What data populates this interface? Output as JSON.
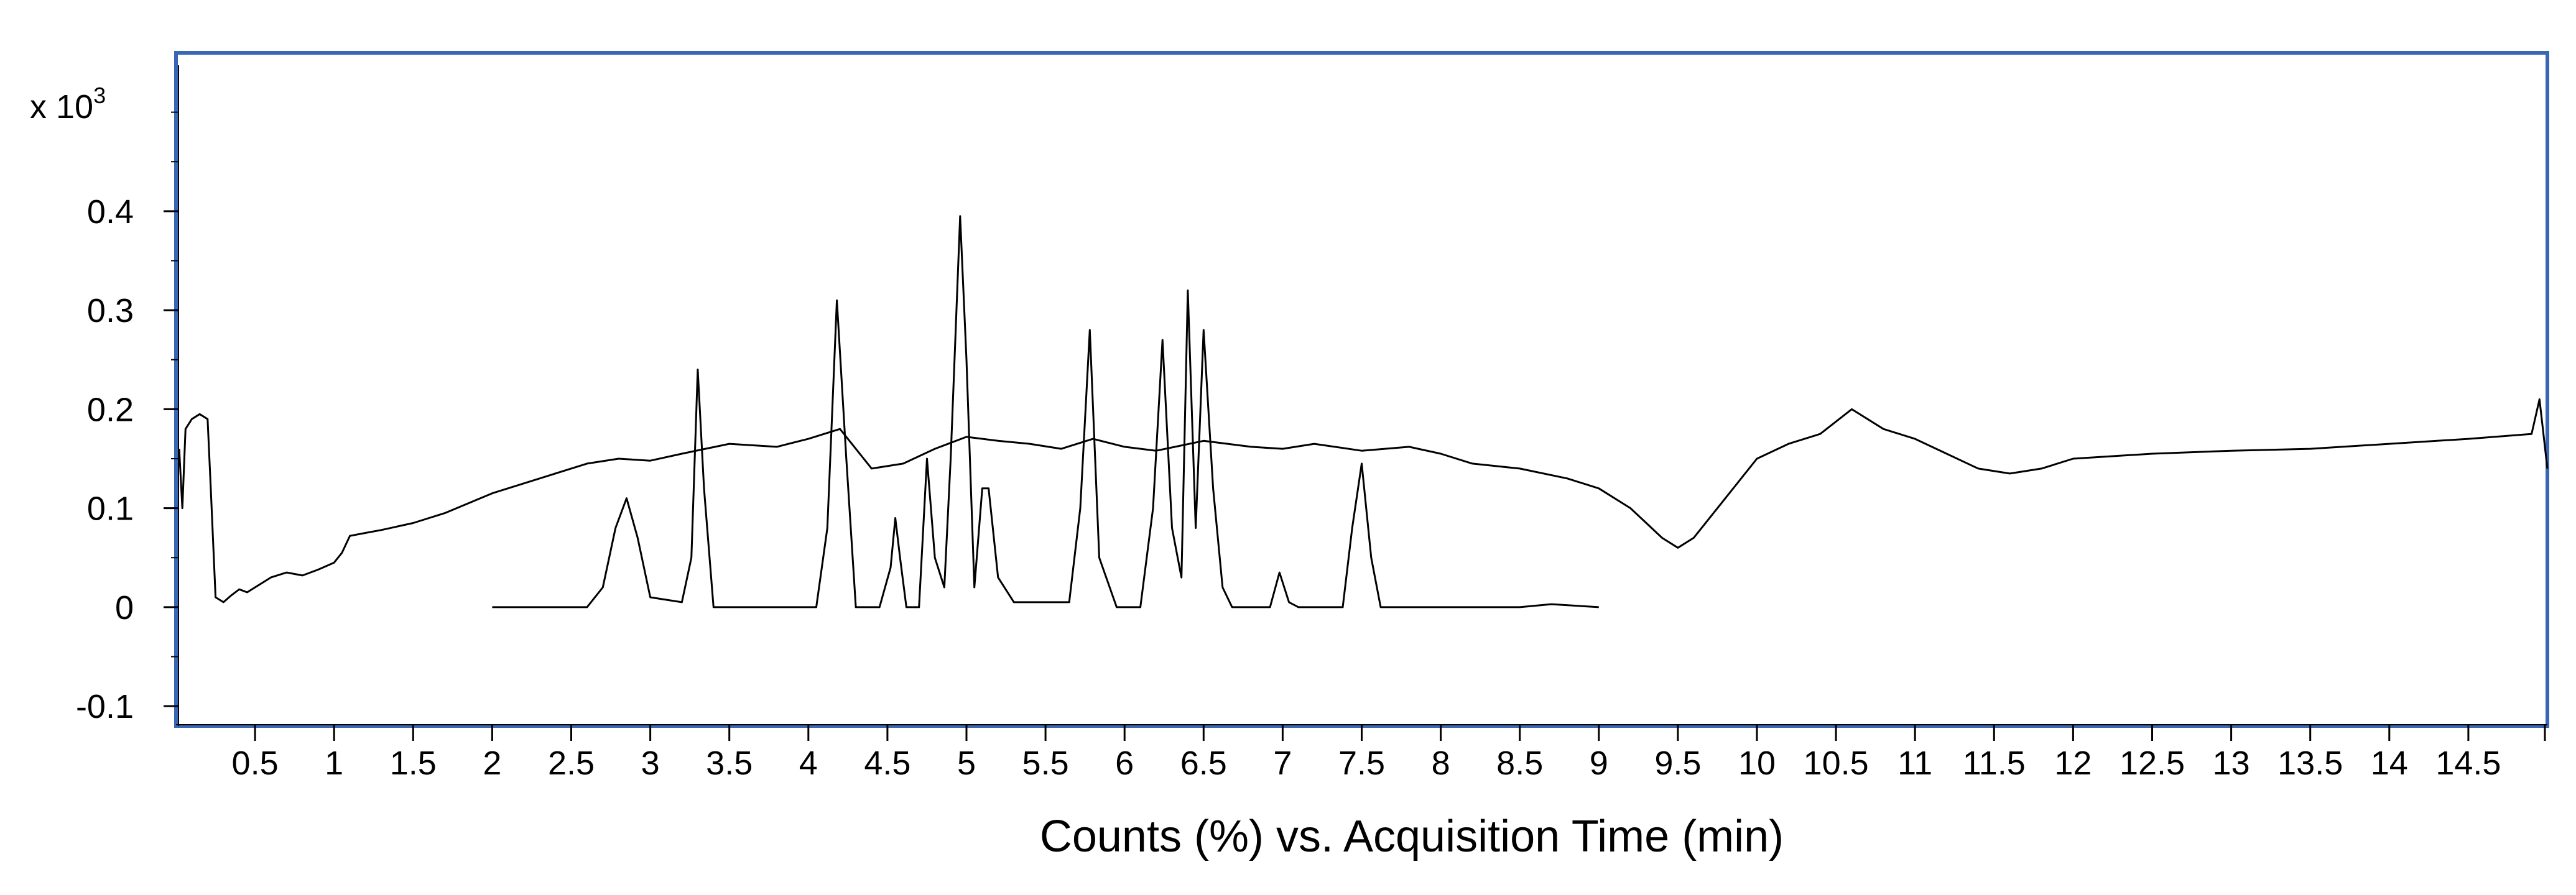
{
  "chart_data": {
    "type": "line",
    "title": "",
    "xlabel": "Counts (%) vs. Acquisition Time (min)",
    "ylabel": "",
    "y_multiplier": {
      "prefix": "x 10",
      "exponent": "3"
    },
    "xlim": [
      0,
      15
    ],
    "ylim": [
      -0.12,
      0.56
    ],
    "x_ticks": [
      0.5,
      1,
      1.5,
      2,
      2.5,
      3,
      3.5,
      4,
      4.5,
      5,
      5.5,
      6,
      6.5,
      7,
      7.5,
      8,
      8.5,
      9,
      9.5,
      10,
      10.5,
      11,
      11.5,
      12,
      12.5,
      13,
      13.5,
      14,
      14.5
    ],
    "x_tick_labels": [
      "0.5",
      "1",
      "1.5",
      "2",
      "2.5",
      "3",
      "3.5",
      "4",
      "4.5",
      "5",
      "5.5",
      "6",
      "6.5",
      "7",
      "7.5",
      "8",
      "8.5",
      "9",
      "9.5",
      "10",
      "10.5",
      "11",
      "11.5",
      "12",
      "12.5",
      "13",
      "13.5",
      "14",
      "14.5"
    ],
    "y_ticks": [
      -0.1,
      0,
      0.1,
      0.2,
      0.3,
      0.4
    ],
    "y_tick_labels": [
      "-0.1",
      "0",
      "0.1",
      "0.2",
      "0.3",
      "0.4"
    ],
    "y_minor_step": 0.05,
    "grid": false,
    "frame_color": "#3a67b5",
    "series": [
      {
        "line_color": "#000000",
        "x": [
          0.02,
          0.04,
          0.06,
          0.1,
          0.15,
          0.2,
          0.22,
          0.25,
          0.3,
          0.35,
          0.4,
          0.45,
          0.5,
          0.55,
          0.6,
          0.7,
          0.8,
          0.9,
          1.0,
          1.05,
          1.1,
          1.2,
          1.3,
          1.5,
          1.7,
          2.0,
          2.3,
          2.6,
          2.8,
          3.0,
          3.2,
          3.5,
          3.8,
          4.0,
          4.2,
          4.4,
          4.6,
          4.8,
          5.0,
          5.2,
          5.4,
          5.6,
          5.8,
          6.0,
          6.2,
          6.5,
          6.8,
          7.0,
          7.2,
          7.5,
          7.8,
          8.0,
          8.2,
          8.5,
          8.8,
          9.0,
          9.2,
          9.3,
          9.4,
          9.5,
          9.6,
          9.8,
          10.0,
          10.2,
          10.4,
          10.6,
          10.8,
          11.0,
          11.2,
          11.4,
          11.6,
          11.8,
          12.0,
          12.5,
          13.0,
          13.5,
          14.0,
          14.5,
          14.9,
          14.95,
          15.0
        ],
        "y": [
          0.16,
          0.1,
          0.18,
          0.19,
          0.195,
          0.19,
          0.12,
          0.01,
          0.005,
          0.012,
          0.018,
          0.015,
          0.02,
          0.025,
          0.03,
          0.035,
          0.032,
          0.038,
          0.045,
          0.055,
          0.072,
          0.075,
          0.078,
          0.085,
          0.095,
          0.115,
          0.13,
          0.145,
          0.15,
          0.148,
          0.155,
          0.165,
          0.162,
          0.17,
          0.18,
          0.14,
          0.145,
          0.16,
          0.172,
          0.168,
          0.165,
          0.16,
          0.17,
          0.162,
          0.158,
          0.168,
          0.162,
          0.16,
          0.165,
          0.158,
          0.162,
          0.155,
          0.145,
          0.14,
          0.13,
          0.12,
          0.1,
          0.085,
          0.07,
          0.06,
          0.07,
          0.11,
          0.15,
          0.165,
          0.175,
          0.2,
          0.18,
          0.17,
          0.155,
          0.14,
          0.135,
          0.14,
          0.15,
          0.155,
          0.158,
          0.16,
          0.165,
          0.17,
          0.175,
          0.21,
          0.14
        ]
      },
      {
        "line_color": "#000000",
        "x": [
          2.0,
          2.6,
          2.7,
          2.78,
          2.85,
          2.92,
          3.0,
          3.2,
          3.26,
          3.3,
          3.34,
          3.4,
          3.6,
          4.05,
          4.12,
          4.18,
          4.24,
          4.3,
          4.45,
          4.52,
          4.55,
          4.58,
          4.62,
          4.7,
          4.75,
          4.8,
          4.86,
          4.9,
          4.96,
          5.0,
          5.05,
          5.1,
          5.14,
          5.2,
          5.3,
          5.65,
          5.72,
          5.78,
          5.84,
          5.95,
          6.1,
          6.18,
          6.24,
          6.3,
          6.36,
          6.4,
          6.45,
          6.5,
          6.56,
          6.62,
          6.68,
          6.8,
          6.92,
          6.98,
          7.04,
          7.1,
          7.38,
          7.44,
          7.5,
          7.56,
          7.62,
          7.8,
          8.5,
          8.7,
          9.0
        ],
        "y": [
          0.0,
          0.0,
          0.02,
          0.08,
          0.11,
          0.07,
          0.01,
          0.005,
          0.05,
          0.24,
          0.12,
          0.0,
          0.0,
          0.0,
          0.08,
          0.31,
          0.15,
          0.0,
          0.0,
          0.04,
          0.09,
          0.05,
          0.0,
          0.0,
          0.15,
          0.05,
          0.02,
          0.15,
          0.395,
          0.25,
          0.02,
          0.12,
          0.12,
          0.03,
          0.005,
          0.005,
          0.1,
          0.28,
          0.05,
          0.0,
          0.0,
          0.1,
          0.27,
          0.08,
          0.03,
          0.32,
          0.08,
          0.28,
          0.12,
          0.02,
          0.0,
          0.0,
          0.0,
          0.035,
          0.005,
          0.0,
          0.0,
          0.08,
          0.145,
          0.05,
          0.0,
          0.0,
          0.0,
          0.003,
          0.0
        ]
      }
    ]
  }
}
